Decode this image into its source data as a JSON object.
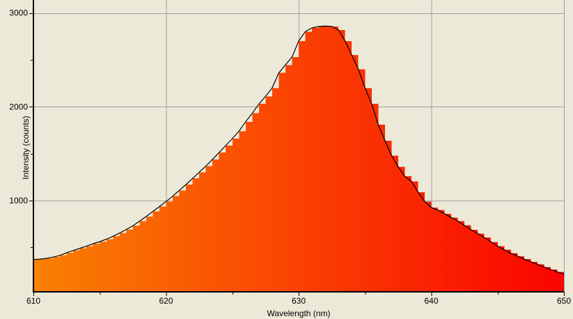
{
  "window": {
    "background_color": "#ece9d8"
  },
  "chart_data": {
    "type": "area",
    "title": "",
    "xlabel": "Wavelength (nm)",
    "ylabel": "Intensity (counts)",
    "x_range": [
      610,
      650
    ],
    "x_start": 610,
    "x_step": 0.5,
    "x_major_ticks": [
      610,
      620,
      630,
      640,
      650
    ],
    "x_minor_ticks": [
      615,
      625,
      635,
      645
    ],
    "x_tick_labels": [
      "610",
      "620",
      "630",
      "640",
      "650"
    ],
    "y_major_ticks": [
      1000,
      2000,
      3000
    ],
    "y_minor_ticks": [
      500,
      1500,
      2500
    ],
    "y_tick_labels": [
      "1000",
      "2000",
      "3000"
    ],
    "grid": "on",
    "legend": "none",
    "fill_style": "histogram-staircase with wavelength gradient",
    "peak": {
      "wavelength_nm": 632.0,
      "counts": 2860
    },
    "series": [
      {
        "name": "intensity",
        "values": [
          372,
          376,
          385,
          398,
          416,
          445,
          468,
          492,
          515,
          540,
          562,
          588,
          620,
          654,
          692,
          732,
          780,
          830,
          884,
          936,
          990,
          1047,
          1109,
          1171,
          1236,
          1301,
          1367,
          1439,
          1511,
          1586,
          1661,
          1739,
          1840,
          1930,
          2030,
          2110,
          2200,
          2360,
          2445,
          2530,
          2700,
          2800,
          2840,
          2855,
          2860,
          2855,
          2820,
          2700,
          2550,
          2400,
          2200,
          2030,
          1810,
          1640,
          1480,
          1360,
          1258,
          1205,
          1090,
          990,
          925,
          898,
          860,
          820,
          782,
          735,
          690,
          648,
          605,
          560,
          515,
          475,
          438,
          408,
          376,
          348,
          320,
          292,
          265,
          240,
          218
        ]
      }
    ],
    "colors": {
      "background": "#ece9d8",
      "grid": "#a0a0a0",
      "axis": "#000000",
      "curve": "#000000",
      "tick_label": "#000000",
      "fill_gradient": [
        {
          "wavelength": 610,
          "color": "#f98102"
        },
        {
          "wavelength": 630,
          "color": "#fa4102"
        },
        {
          "wavelength": 650,
          "color": "#fa0300"
        }
      ]
    }
  }
}
